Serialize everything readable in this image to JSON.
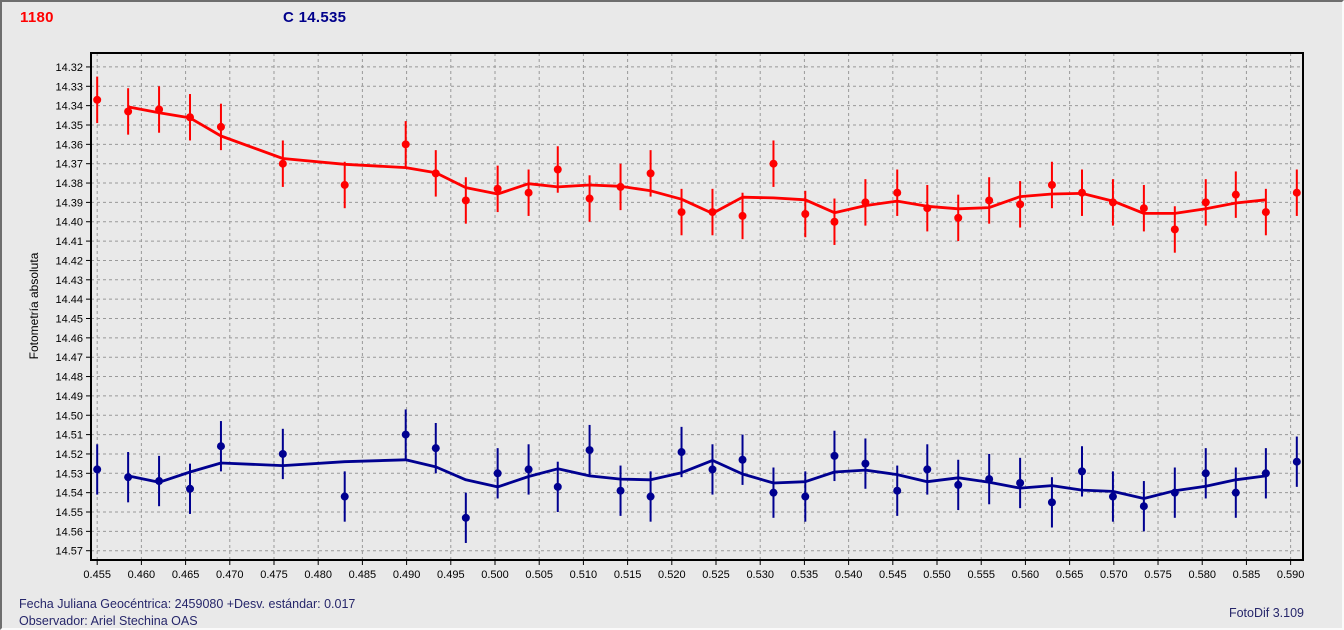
{
  "header": {
    "object_label": "1180",
    "comparison_label": "C 14.535",
    "object_color": "#ff0000",
    "comparison_color": "#00008b"
  },
  "footer": {
    "julian_date": "Fecha Juliana Geocéntrica: 2459080 +",
    "std_dev": "Desv. estándar: 0.017",
    "observer": "Observador: Ariel Stechina OAS",
    "app_version": "FotoDif 3.109"
  },
  "chart_data": {
    "type": "scatter",
    "title": "",
    "xlabel": "",
    "ylabel": "Fotometría absoluta",
    "grid": true,
    "y_axis_inverted": true,
    "xlim": [
      0.4543,
      0.5914
    ],
    "ylim": [
      14.3128,
      14.5748
    ],
    "x_ticks": [
      0.455,
      0.46,
      0.465,
      0.47,
      0.475,
      0.48,
      0.485,
      0.49,
      0.495,
      0.5,
      0.505,
      0.51,
      0.515,
      0.52,
      0.525,
      0.53,
      0.535,
      0.54,
      0.545,
      0.55,
      0.555,
      0.56,
      0.565,
      0.57,
      0.575,
      0.58,
      0.585,
      0.59
    ],
    "y_ticks": [
      14.32,
      14.33,
      14.34,
      14.35,
      14.36,
      14.37,
      14.38,
      14.39,
      14.4,
      14.41,
      14.42,
      14.43,
      14.44,
      14.45,
      14.46,
      14.47,
      14.48,
      14.49,
      14.5,
      14.51,
      14.52,
      14.53,
      14.54,
      14.55,
      14.56,
      14.57
    ],
    "smoothing": "moving_average_3",
    "x": [
      0.455,
      0.4585,
      0.462,
      0.4655,
      0.469,
      0.476,
      0.483,
      0.4899,
      0.4933,
      0.4967,
      0.5003,
      0.5038,
      0.5071,
      0.5107,
      0.5142,
      0.5176,
      0.5211,
      0.5246,
      0.528,
      0.5315,
      0.5351,
      0.5384,
      0.5419,
      0.5455,
      0.5489,
      0.5524,
      0.5559,
      0.5594,
      0.563,
      0.5664,
      0.5699,
      0.5734,
      0.5769,
      0.5804,
      0.5838,
      0.5872,
      0.5907
    ],
    "series": [
      {
        "name": "1180",
        "color": "#ff0000",
        "marker": "circle",
        "error_bar": 0.012,
        "values": [
          14.337,
          14.343,
          14.342,
          14.346,
          14.351,
          14.37,
          14.381,
          14.36,
          14.375,
          14.389,
          14.383,
          14.385,
          14.373,
          14.388,
          14.382,
          14.375,
          14.395,
          14.395,
          14.397,
          14.37,
          14.396,
          14.4,
          14.39,
          14.385,
          14.393,
          14.398,
          14.389,
          14.391,
          14.381,
          14.385,
          14.39,
          14.393,
          14.404,
          14.39,
          14.386,
          14.395,
          14.385
        ]
      },
      {
        "name": "C 14.535",
        "color": "#000090",
        "marker": "circle",
        "error_bar": 0.013,
        "values": [
          14.528,
          14.532,
          14.534,
          14.538,
          14.516,
          14.52,
          14.542,
          14.51,
          14.517,
          14.553,
          14.53,
          14.528,
          14.537,
          14.518,
          14.539,
          14.542,
          14.519,
          14.528,
          14.523,
          14.54,
          14.542,
          14.521,
          14.525,
          14.539,
          14.528,
          14.536,
          14.533,
          14.535,
          14.545,
          14.529,
          14.542,
          14.547,
          14.54,
          14.53,
          14.54,
          14.53,
          14.524
        ]
      }
    ],
    "colors": {
      "background": "#e9e9e9",
      "grid": "#999999",
      "frame": "#000000",
      "tick_text": "#000000"
    }
  }
}
